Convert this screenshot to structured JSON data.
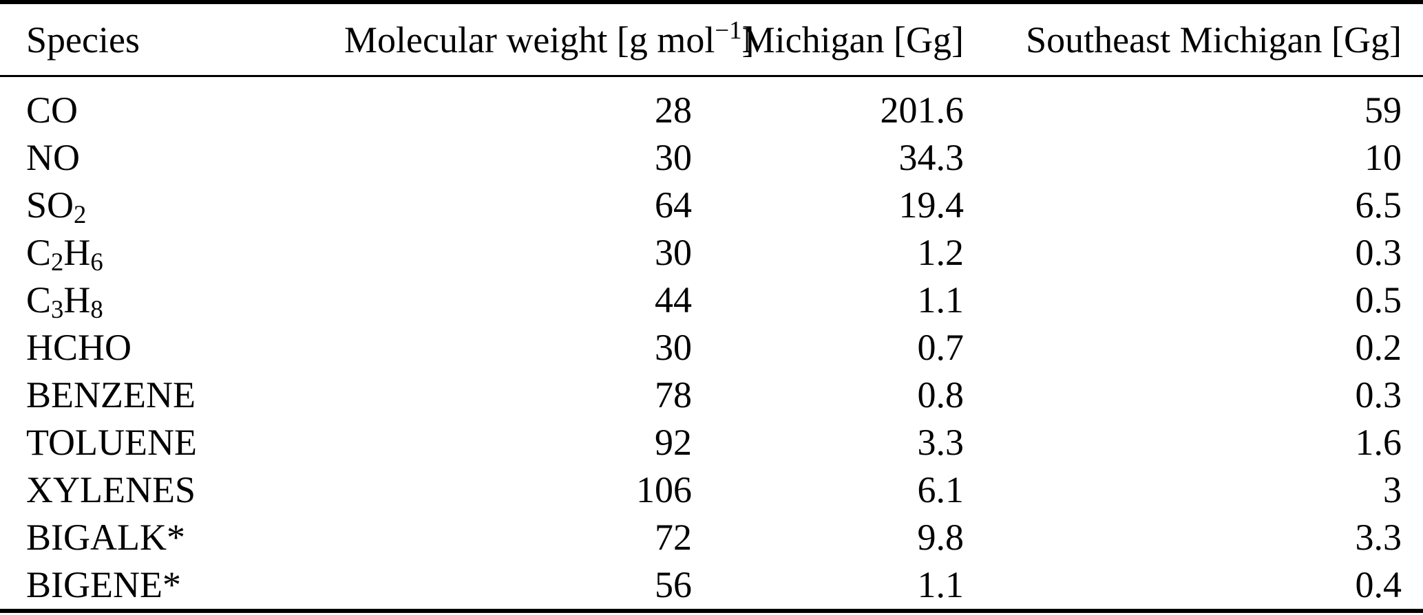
{
  "page": {
    "background_color": "#ffffff",
    "text_color": "#000000",
    "rule_color": "#000000"
  },
  "table": {
    "columns": [
      {
        "key": "species",
        "align": "left",
        "label_segments": [
          {
            "text": "Species"
          }
        ]
      },
      {
        "key": "mw",
        "align": "right",
        "label_segments": [
          {
            "text": "Molecular weight [g mol"
          },
          {
            "text": "−1",
            "sup": true
          },
          {
            "text": "]"
          }
        ]
      },
      {
        "key": "michigan",
        "align": "right",
        "label_segments": [
          {
            "text": "Michigan [Gg]"
          }
        ]
      },
      {
        "key": "se_michigan",
        "align": "right",
        "label_segments": [
          {
            "text": "Southeast Michigan [Gg]"
          }
        ]
      }
    ],
    "rows": [
      {
        "species": [
          {
            "text": "CO"
          }
        ],
        "mw": "28",
        "michigan": "201.6",
        "se_michigan": "59"
      },
      {
        "species": [
          {
            "text": "NO"
          }
        ],
        "mw": "30",
        "michigan": "34.3",
        "se_michigan": "10"
      },
      {
        "species": [
          {
            "text": "SO"
          },
          {
            "text": "2",
            "sub": true
          }
        ],
        "mw": "64",
        "michigan": "19.4",
        "se_michigan": "6.5"
      },
      {
        "species": [
          {
            "text": "C"
          },
          {
            "text": "2",
            "sub": true
          },
          {
            "text": "H"
          },
          {
            "text": "6",
            "sub": true
          }
        ],
        "mw": "30",
        "michigan": "1.2",
        "se_michigan": "0.3"
      },
      {
        "species": [
          {
            "text": "C"
          },
          {
            "text": "3",
            "sub": true
          },
          {
            "text": "H"
          },
          {
            "text": "8",
            "sub": true
          }
        ],
        "mw": "44",
        "michigan": "1.1",
        "se_michigan": "0.5"
      },
      {
        "species": [
          {
            "text": "HCHO"
          }
        ],
        "mw": "30",
        "michigan": "0.7",
        "se_michigan": "0.2"
      },
      {
        "species": [
          {
            "text": "BENZENE"
          }
        ],
        "mw": "78",
        "michigan": "0.8",
        "se_michigan": "0.3"
      },
      {
        "species": [
          {
            "text": "TOLUENE"
          }
        ],
        "mw": "92",
        "michigan": "3.3",
        "se_michigan": "1.6"
      },
      {
        "species": [
          {
            "text": "XYLENES"
          }
        ],
        "mw": "106",
        "michigan": "6.1",
        "se_michigan": "3"
      },
      {
        "species": [
          {
            "text": "BIGALK*"
          }
        ],
        "mw": "72",
        "michigan": "9.8",
        "se_michigan": "3.3"
      },
      {
        "species": [
          {
            "text": "BIGENE*"
          }
        ],
        "mw": "56",
        "michigan": "1.1",
        "se_michigan": "0.4"
      }
    ]
  }
}
